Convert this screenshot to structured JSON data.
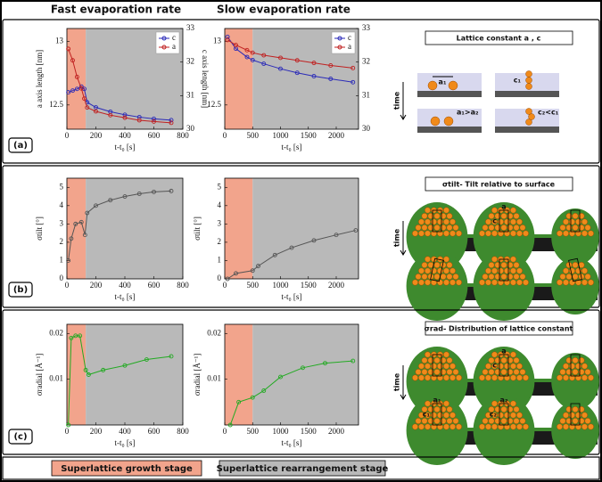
{
  "header": {
    "fast": "Fast evaporation rate",
    "slow": "Slow evaporation rate"
  },
  "panels": [
    {
      "label": "(a)",
      "charts": [
        {
          "type": "line",
          "xlabel": "t-t₀ [s]",
          "ylabel": "a axis length [nm]",
          "y2label": "c axis length [nm]",
          "xlim": [
            0,
            800
          ],
          "xticks": [
            0,
            200,
            400,
            600,
            800
          ],
          "ylim": [
            12.31,
            13.1
          ],
          "yticks": [
            12.5,
            13
          ],
          "y2lim": [
            30,
            33
          ],
          "y2ticks": [
            30,
            31,
            32,
            33
          ],
          "growth_stage_end": 130,
          "legend": "upper right",
          "x": [
            10,
            40,
            70,
            100,
            120,
            140,
            200,
            300,
            400,
            500,
            600,
            720
          ],
          "series": [
            {
              "name": "c",
              "color": "#2a2ab8",
              "axis": "y2",
              "values": [
                31.1,
                31.15,
                31.2,
                31.27,
                31.2,
                30.8,
                30.65,
                30.52,
                30.43,
                30.36,
                30.31,
                30.27
              ]
            },
            {
              "name": "a",
              "color": "#c02020",
              "values": [
                12.94,
                12.85,
                12.72,
                12.63,
                12.55,
                12.48,
                12.45,
                12.42,
                12.4,
                12.38,
                12.37,
                12.36
              ]
            }
          ]
        },
        {
          "type": "line",
          "xlabel": "t-t₀ [s]",
          "xlim": [
            0,
            2400
          ],
          "xticks": [
            0,
            500,
            1000,
            1500,
            2000
          ],
          "ylim": [
            12.31,
            13.1
          ],
          "yticks": [
            12.5,
            13
          ],
          "y2lim": [
            30,
            33
          ],
          "y2ticks": [
            30,
            31,
            32,
            33
          ],
          "growth_stage_end": 500,
          "legend": "upper right",
          "x": [
            50,
            200,
            400,
            500,
            700,
            1000,
            1300,
            1600,
            1900,
            2300
          ],
          "series": [
            {
              "name": "c",
              "color": "#2a2ab8",
              "axis": "y2",
              "values": [
                32.75,
                32.4,
                32.15,
                32.06,
                31.95,
                31.8,
                31.68,
                31.58,
                31.5,
                31.4
              ]
            },
            {
              "name": "a",
              "color": "#c02020",
              "values": [
                13.01,
                12.97,
                12.93,
                12.91,
                12.89,
                12.87,
                12.85,
                12.83,
                12.81,
                12.79
              ]
            }
          ]
        }
      ],
      "diagram": {
        "title": "Lattice constant a , c",
        "time": "time",
        "labels": [
          "a₁",
          "c₁",
          "a₁>a₂",
          "c₂<c₁"
        ]
      }
    },
    {
      "label": "(b)",
      "charts": [
        {
          "type": "line",
          "xlabel": "t-t₀ [s]",
          "ylabel": "σtilt [°]",
          "xlim": [
            0,
            800
          ],
          "xticks": [
            0,
            200,
            400,
            600,
            800
          ],
          "ylim": [
            0,
            5.5
          ],
          "yticks": [
            0,
            1,
            2,
            3,
            4,
            5
          ],
          "growth_stage_end": 130,
          "color": "#555555",
          "x": [
            10,
            30,
            60,
            100,
            125,
            140,
            200,
            300,
            400,
            500,
            600,
            720
          ],
          "values": [
            1,
            2.2,
            3,
            3.1,
            2.4,
            3.6,
            4,
            4.3,
            4.5,
            4.65,
            4.75,
            4.8
          ]
        },
        {
          "type": "line",
          "xlabel": "t-t₀ [s]",
          "ylabel": "σtilt [°]",
          "xlim": [
            0,
            2400
          ],
          "xticks": [
            0,
            500,
            1000,
            1500,
            2000
          ],
          "ylim": [
            0,
            5.5
          ],
          "yticks": [
            0,
            1,
            2,
            3,
            4,
            5
          ],
          "growth_stage_end": 500,
          "color": "#555555",
          "x": [
            50,
            200,
            500,
            600,
            900,
            1200,
            1600,
            2000,
            2350
          ],
          "values": [
            0,
            0.3,
            0.45,
            0.7,
            1.3,
            1.7,
            2.1,
            2.4,
            2.65
          ]
        }
      ],
      "diagram": {
        "title": "σtilt- Tilt relative to surface",
        "time": "time",
        "labels": [
          "a",
          "c"
        ]
      }
    },
    {
      "label": "(c)",
      "charts": [
        {
          "type": "line",
          "xlabel": "t-t₀ [s]",
          "ylabel": "σradial [Å⁻¹]",
          "xlim": [
            0,
            800
          ],
          "xticks": [
            0,
            200,
            400,
            600,
            800
          ],
          "ylim": [
            0,
            0.022
          ],
          "yticks": [
            0.01,
            0.02
          ],
          "growth_stage_end": 130,
          "color": "#22aa22",
          "x": [
            10,
            30,
            60,
            90,
            130,
            150,
            250,
            400,
            550,
            720
          ],
          "values": [
            0,
            0.019,
            0.0195,
            0.0195,
            0.012,
            0.011,
            0.012,
            0.013,
            0.0143,
            0.015
          ]
        },
        {
          "type": "line",
          "xlabel": "t-t₀ [s]",
          "ylabel": "σradial [Å⁻¹]",
          "xlim": [
            0,
            2400
          ],
          "xticks": [
            0,
            500,
            1000,
            1500,
            2000
          ],
          "ylim": [
            0,
            0.022
          ],
          "yticks": [
            0.01,
            0.02
          ],
          "growth_stage_end": 500,
          "color": "#22aa22",
          "x": [
            100,
            250,
            500,
            700,
            1000,
            1400,
            1800,
            2300
          ],
          "values": [
            0,
            0.005,
            0.006,
            0.0075,
            0.0105,
            0.0125,
            0.0135,
            0.014
          ]
        }
      ],
      "diagram": {
        "title": "σrad- Distribution of lattice constant",
        "time": "time",
        "labels": [
          "a",
          "c",
          "a₁",
          "c₁",
          "a₂",
          "c₂"
        ]
      }
    }
  ],
  "footer": {
    "growth": {
      "label": "Superlattice growth stage",
      "color": "#f2a48c"
    },
    "rearrangement": {
      "label": "Superlattice rearrangement stage",
      "color": "#b9b9b9"
    }
  }
}
